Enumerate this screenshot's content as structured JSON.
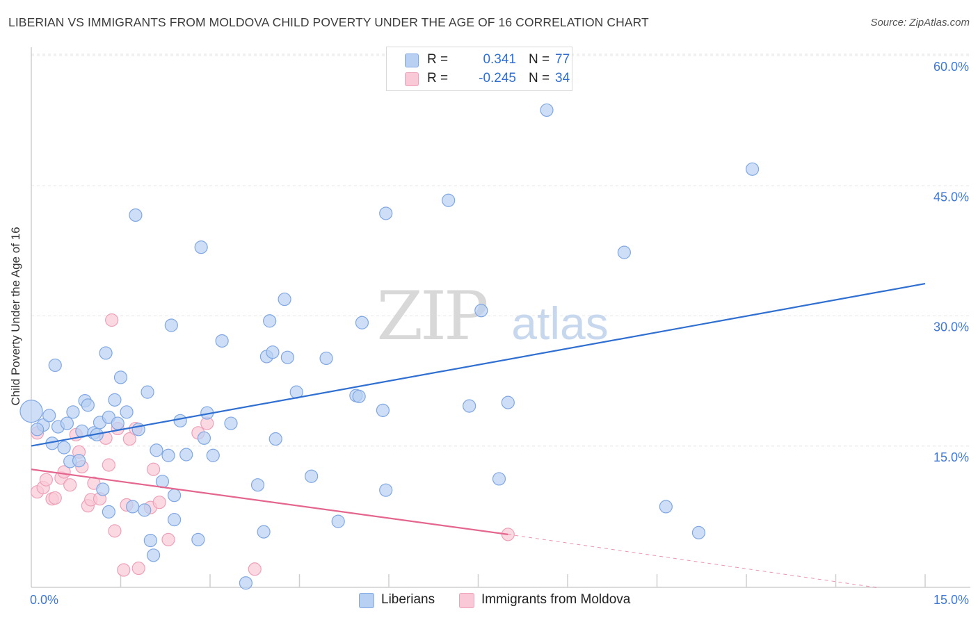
{
  "title": "LIBERIAN VS IMMIGRANTS FROM MOLDOVA CHILD POVERTY UNDER THE AGE OF 16 CORRELATION CHART",
  "source": "Source: ZipAtlas.com",
  "watermark": {
    "zip": "ZIP",
    "atlas": "atlas"
  },
  "legend": {
    "r_label": "R =",
    "n_label": "N =",
    "rows": [
      {
        "name": "Liberians",
        "r": "0.341",
        "n": "77",
        "fill": "#b8d0f2",
        "stroke": "#7fa7e3"
      },
      {
        "name": "Immigrants from Moldova",
        "r": "-0.245",
        "n": "34",
        "fill": "#f9c9d7",
        "stroke": "#eea0b8"
      }
    ]
  },
  "chart_data": {
    "type": "scatter",
    "title": "LIBERIAN VS IMMIGRANTS FROM MOLDOVA CHILD POVERTY UNDER THE AGE OF 16 CORRELATION CHART",
    "xlabel": "",
    "ylabel": "Child Poverty Under the Age of 16",
    "xlim": [
      0,
      15
    ],
    "ylim": [
      0,
      60
    ],
    "x_tick_labels": [
      "0.0%",
      "15.0%"
    ],
    "y_ticks": [
      15,
      30,
      45,
      60
    ],
    "y_tick_labels": [
      "15.0%",
      "30.0%",
      "45.0%",
      "60.0%"
    ],
    "grid": true,
    "legend_position": "bottom-center",
    "series": [
      {
        "name": "Liberians",
        "color": "#2f6fd1",
        "point_fill": "#b8d0f2",
        "point_stroke": "#7fa7e3",
        "points": [
          [
            0.0,
            20.3
          ],
          [
            0.2,
            18.7
          ],
          [
            0.3,
            19.8
          ],
          [
            0.35,
            16.6
          ],
          [
            0.4,
            25.6
          ],
          [
            0.45,
            18.5
          ],
          [
            0.55,
            16.1
          ],
          [
            0.6,
            18.9
          ],
          [
            0.65,
            14.5
          ],
          [
            0.7,
            20.2
          ],
          [
            0.8,
            14.6
          ],
          [
            0.85,
            18.0
          ],
          [
            0.9,
            21.5
          ],
          [
            0.95,
            21.0
          ],
          [
            1.05,
            17.8
          ],
          [
            1.1,
            17.6
          ],
          [
            1.15,
            19.0
          ],
          [
            1.2,
            11.3
          ],
          [
            1.25,
            27.0
          ],
          [
            1.3,
            19.6
          ],
          [
            1.3,
            8.7
          ],
          [
            1.4,
            21.6
          ],
          [
            1.45,
            18.9
          ],
          [
            1.5,
            24.2
          ],
          [
            1.6,
            20.2
          ],
          [
            1.7,
            9.3
          ],
          [
            1.75,
            42.9
          ],
          [
            1.8,
            18.2
          ],
          [
            1.9,
            8.9
          ],
          [
            1.95,
            22.5
          ],
          [
            2.0,
            5.4
          ],
          [
            2.05,
            3.7
          ],
          [
            2.1,
            15.8
          ],
          [
            2.2,
            12.2
          ],
          [
            2.3,
            15.2
          ],
          [
            2.35,
            30.2
          ],
          [
            2.4,
            7.8
          ],
          [
            2.4,
            10.6
          ],
          [
            2.5,
            19.2
          ],
          [
            2.6,
            15.3
          ],
          [
            2.8,
            5.5
          ],
          [
            2.85,
            39.2
          ],
          [
            2.9,
            17.2
          ],
          [
            2.95,
            20.1
          ],
          [
            3.05,
            15.2
          ],
          [
            3.2,
            28.4
          ],
          [
            3.35,
            18.9
          ],
          [
            3.6,
            0.5
          ],
          [
            3.8,
            11.8
          ],
          [
            3.9,
            6.4
          ],
          [
            3.95,
            26.6
          ],
          [
            4.0,
            30.7
          ],
          [
            4.05,
            27.1
          ],
          [
            4.1,
            17.1
          ],
          [
            4.25,
            33.2
          ],
          [
            4.3,
            26.5
          ],
          [
            4.45,
            22.5
          ],
          [
            4.7,
            12.8
          ],
          [
            4.95,
            26.4
          ],
          [
            5.15,
            7.6
          ],
          [
            5.45,
            22.1
          ],
          [
            5.5,
            22.0
          ],
          [
            5.55,
            30.5
          ],
          [
            5.9,
            20.4
          ],
          [
            5.95,
            43.1
          ],
          [
            5.95,
            11.2
          ],
          [
            7.0,
            44.6
          ],
          [
            7.35,
            20.9
          ],
          [
            7.55,
            31.9
          ],
          [
            7.85,
            12.5
          ],
          [
            8.0,
            21.3
          ],
          [
            8.65,
            55.0
          ],
          [
            9.95,
            38.6
          ],
          [
            10.65,
            9.3
          ],
          [
            11.2,
            6.3
          ],
          [
            12.1,
            48.2
          ],
          [
            0.1,
            18.2
          ]
        ],
        "trend": {
          "x0": 0,
          "y0": 16.3,
          "x1": 15,
          "y1": 35.0
        }
      },
      {
        "name": "Immigrants from Moldova",
        "color": "#e4668e",
        "point_fill": "#f9c9d7",
        "point_stroke": "#eea0b8",
        "points": [
          [
            0.1,
            17.8
          ],
          [
            0.1,
            11.0
          ],
          [
            0.2,
            11.5
          ],
          [
            0.25,
            12.4
          ],
          [
            0.35,
            10.2
          ],
          [
            0.4,
            10.3
          ],
          [
            0.5,
            12.6
          ],
          [
            0.55,
            13.3
          ],
          [
            0.65,
            11.8
          ],
          [
            0.75,
            17.6
          ],
          [
            0.8,
            15.6
          ],
          [
            0.85,
            13.9
          ],
          [
            0.95,
            9.4
          ],
          [
            1.0,
            10.1
          ],
          [
            1.05,
            12.0
          ],
          [
            1.15,
            10.2
          ],
          [
            1.25,
            17.2
          ],
          [
            1.3,
            14.1
          ],
          [
            1.35,
            30.8
          ],
          [
            1.4,
            6.5
          ],
          [
            1.45,
            18.3
          ],
          [
            1.55,
            2.0
          ],
          [
            1.6,
            9.5
          ],
          [
            1.65,
            17.1
          ],
          [
            1.75,
            18.3
          ],
          [
            1.8,
            2.2
          ],
          [
            2.0,
            9.2
          ],
          [
            2.05,
            13.6
          ],
          [
            2.15,
            9.8
          ],
          [
            2.3,
            5.5
          ],
          [
            2.8,
            17.8
          ],
          [
            2.95,
            18.9
          ],
          [
            3.75,
            2.1
          ],
          [
            8.0,
            6.1
          ]
        ],
        "trend": {
          "x0": 0,
          "y0": 13.6,
          "x1": 8.0,
          "y1": 6.1
        },
        "trend_extension": {
          "x0": 8.0,
          "y0": 6.1,
          "x1": 15.0,
          "y1": -0.5
        }
      }
    ]
  }
}
